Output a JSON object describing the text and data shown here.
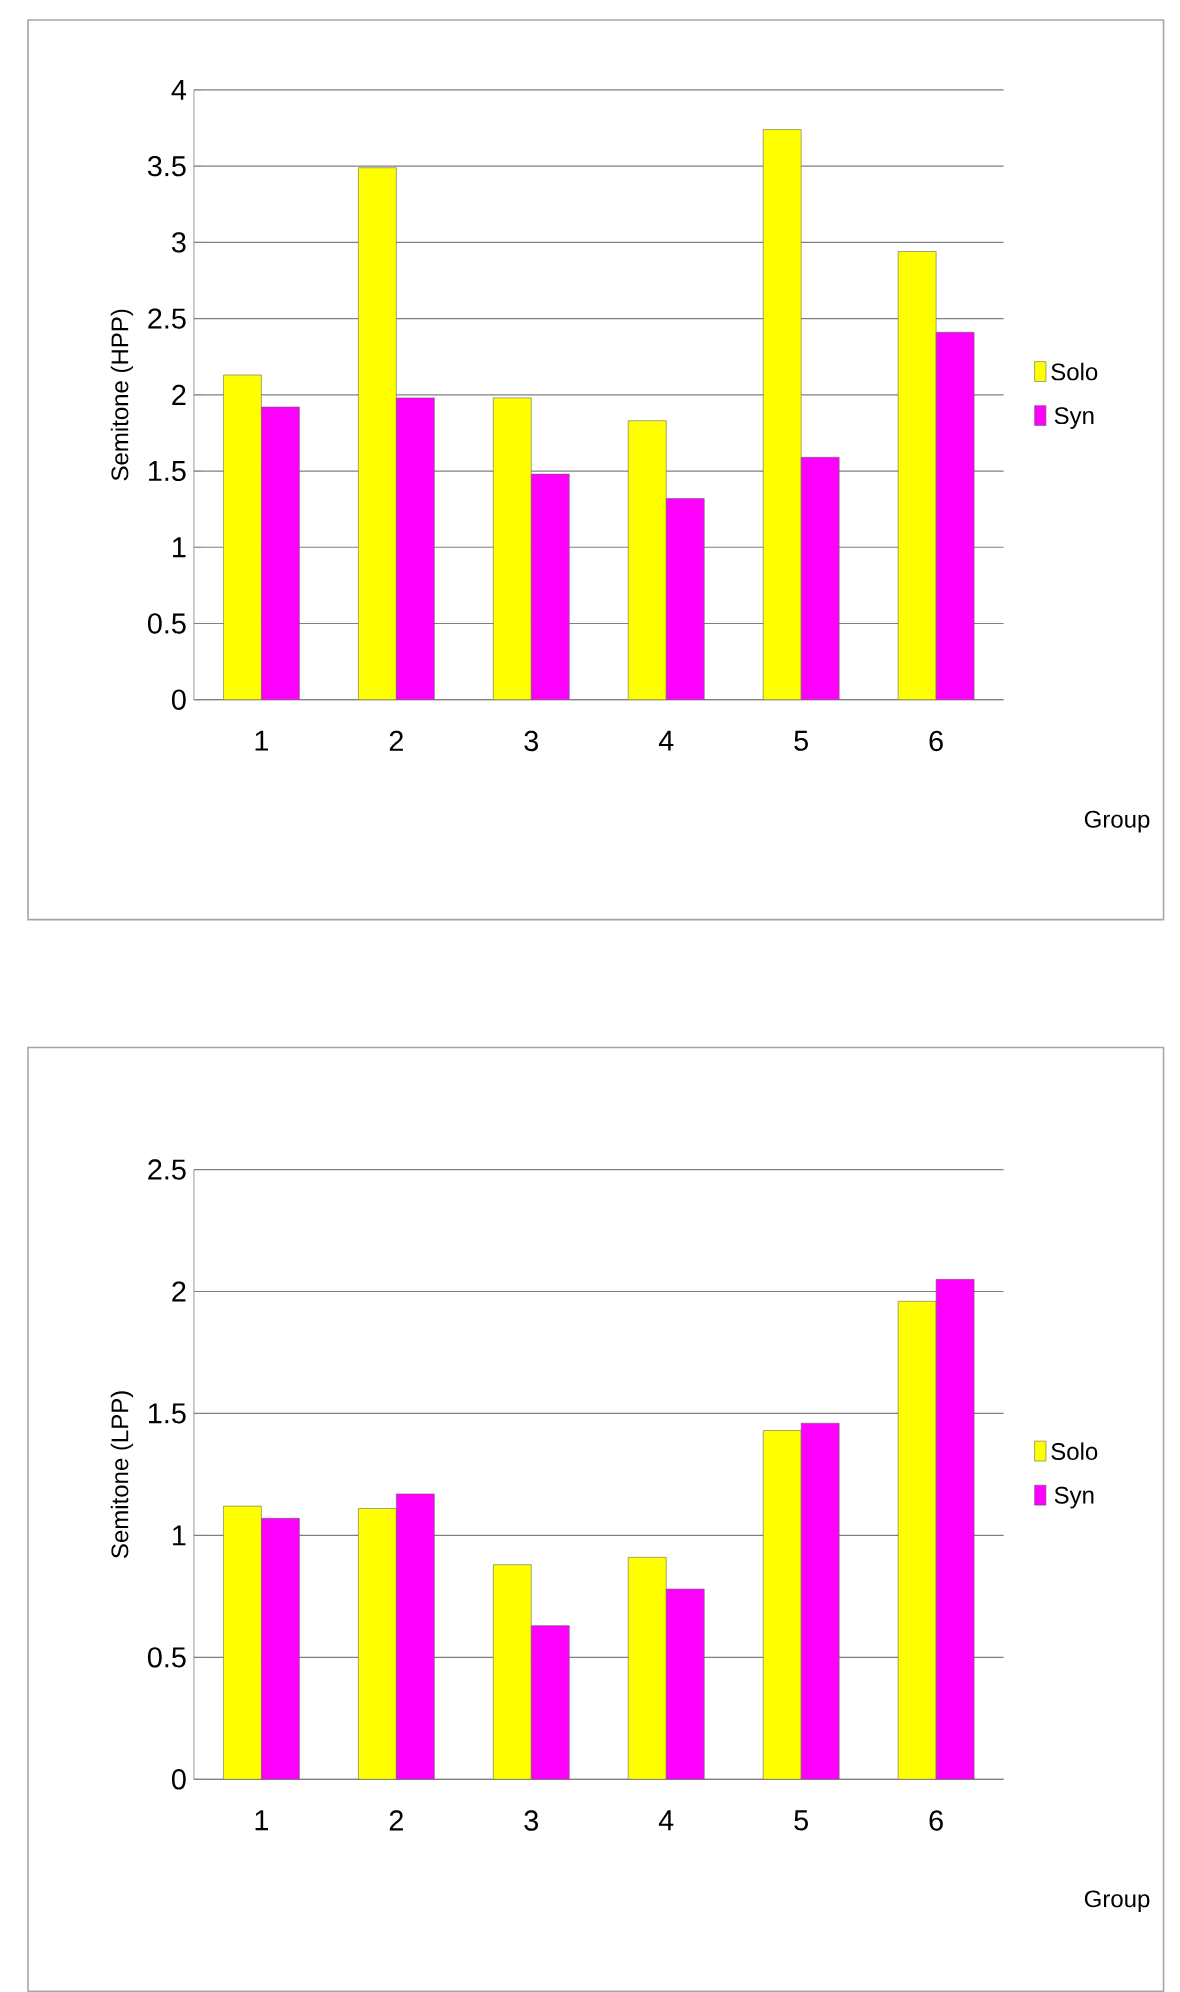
{
  "chart_data": [
    {
      "type": "bar",
      "categories": [
        "1",
        "2",
        "3",
        "4",
        "5",
        "6"
      ],
      "xlabel": "Group",
      "ylabel": "Semitone (HPP)",
      "ylim": [
        0,
        4
      ],
      "yticks": [
        0,
        0.5,
        1,
        1.5,
        2,
        2.5,
        3,
        3.5,
        4
      ],
      "grid": "y",
      "legend": "right",
      "series": [
        {
          "name": "Solo",
          "color": "#ffff00",
          "values": [
            2.13,
            3.49,
            1.98,
            1.83,
            3.74,
            2.94
          ]
        },
        {
          "name": "Syn",
          "color": "#ff00ff",
          "values": [
            1.92,
            1.98,
            1.48,
            1.32,
            1.59,
            2.41
          ]
        }
      ]
    },
    {
      "type": "bar",
      "categories": [
        "1",
        "2",
        "3",
        "4",
        "5",
        "6"
      ],
      "xlabel": "Group",
      "ylabel": "Semitone (LPP)",
      "ylim": [
        0,
        2.5
      ],
      "yticks": [
        0,
        0.5,
        1,
        1.5,
        2,
        2.5
      ],
      "grid": "y",
      "legend": "right",
      "series": [
        {
          "name": "Solo",
          "color": "#ffff00",
          "values": [
            1.12,
            1.11,
            0.88,
            0.91,
            1.43,
            1.96
          ]
        },
        {
          "name": "Syn",
          "color": "#ff00ff",
          "values": [
            1.07,
            1.17,
            0.63,
            0.78,
            1.46,
            2.05
          ]
        }
      ]
    }
  ]
}
